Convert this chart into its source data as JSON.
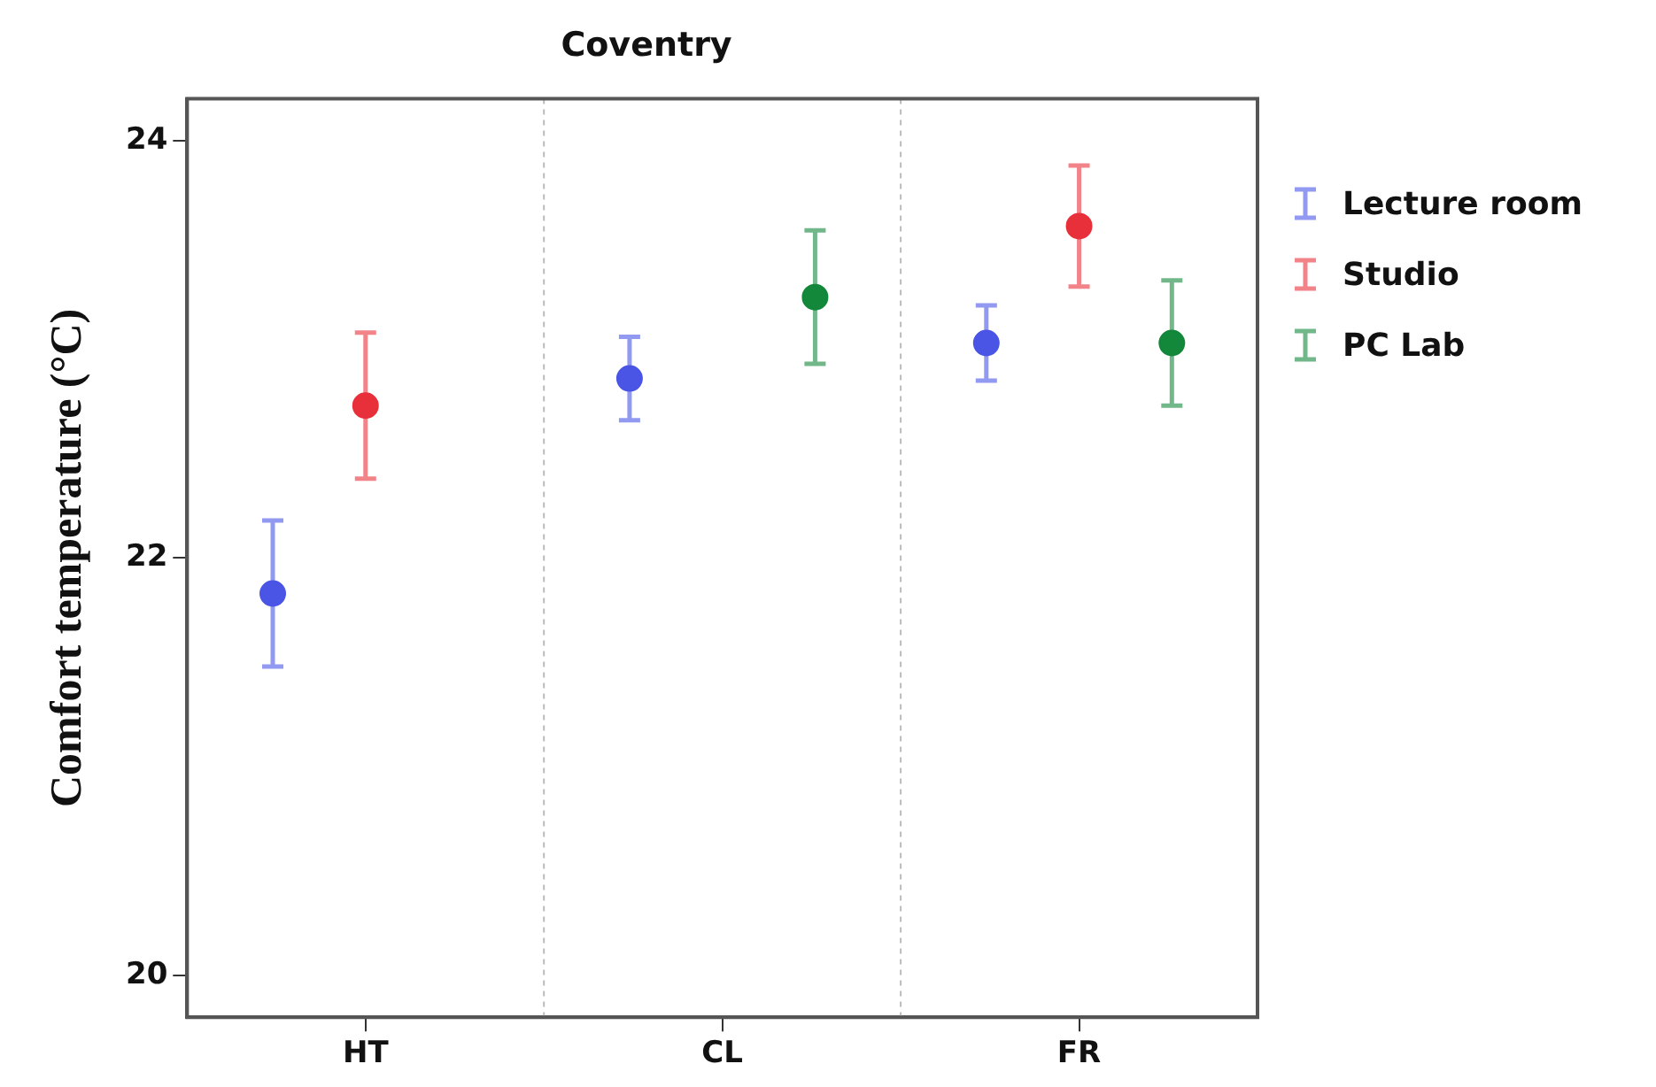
{
  "chart_data": {
    "type": "scatter",
    "title": "Coventry",
    "ylabel": "Comfort temperature (°C)",
    "categories": [
      "HT",
      "CL",
      "FR"
    ],
    "series": [
      {
        "name": "Lecture room",
        "color": "#4a55e6",
        "values": [
          21.83,
          22.86,
          23.03
        ],
        "errors": [
          0.35,
          0.2,
          0.18
        ]
      },
      {
        "name": "Studio",
        "color": "#e8303a",
        "values": [
          22.73,
          null,
          23.59
        ],
        "errors": [
          0.35,
          null,
          0.29
        ]
      },
      {
        "name": "PC Lab",
        "color": "#13873a",
        "values": [
          null,
          23.25,
          23.03
        ],
        "errors": [
          null,
          0.32,
          0.3
        ]
      }
    ],
    "ylim": [
      19.8,
      24.2
    ],
    "yticks": [
      20,
      22,
      24
    ],
    "grid": "x",
    "legend": "right",
    "marker": "circle"
  }
}
